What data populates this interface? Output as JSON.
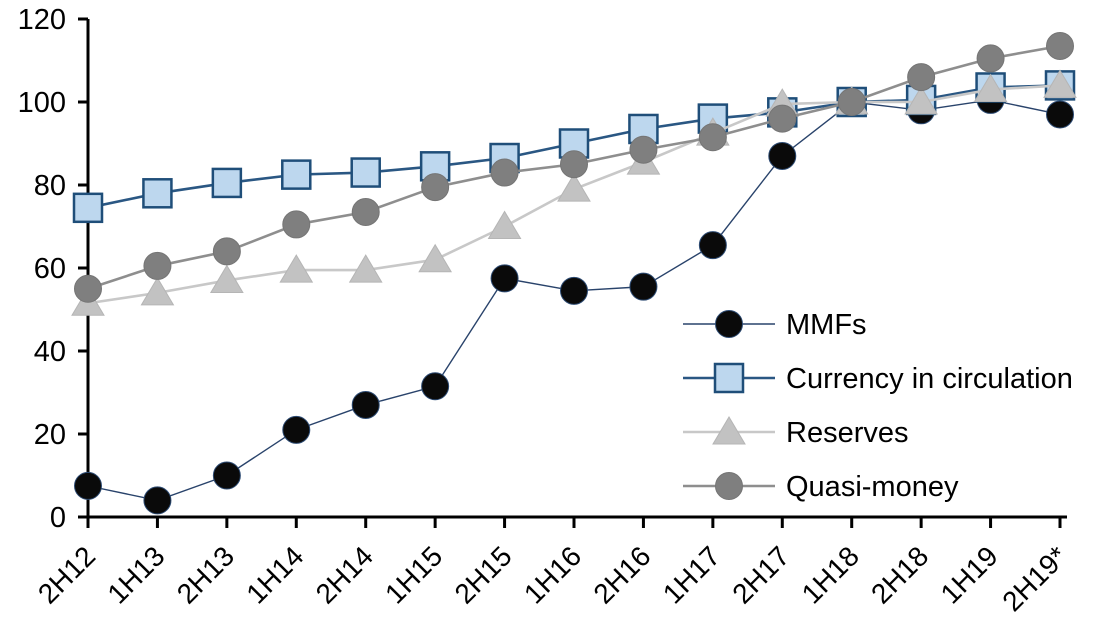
{
  "chart_data": {
    "type": "line",
    "title": "",
    "xlabel": "",
    "ylabel": "",
    "ylim": [
      0,
      120
    ],
    "yticks": [
      0,
      20,
      40,
      60,
      80,
      100,
      120
    ],
    "grid": false,
    "legend_position": "inside-right",
    "axis_color": "#000000",
    "categories": [
      "2H12",
      "1H13",
      "2H13",
      "1H14",
      "2H14",
      "1H15",
      "2H15",
      "1H16",
      "2H16",
      "1H17",
      "2H17",
      "1H18",
      "2H18",
      "1H19",
      "2H19*"
    ],
    "series": [
      {
        "name": "MMFs",
        "marker": "circle",
        "marker_fill": "#0a0a0a",
        "marker_stroke": "#2d4b73",
        "marker_stroke_width": 1,
        "line_color": "#29436b",
        "line_width": 1.4,
        "values": [
          7.5,
          4,
          10,
          21,
          27,
          31.5,
          57.5,
          54.5,
          55.5,
          65.5,
          87,
          100,
          98,
          100.5,
          97
        ]
      },
      {
        "name": "Currency in circulation",
        "marker": "square",
        "marker_fill": "#bdd7ee",
        "marker_stroke": "#1f4e79",
        "marker_stroke_width": 2.5,
        "line_color": "#2a5783",
        "line_width": 2.6,
        "values": [
          74.5,
          78,
          80.5,
          82.5,
          83,
          84.5,
          86.5,
          90,
          93.5,
          96,
          97.5,
          100,
          100.5,
          103.5,
          104
        ]
      },
      {
        "name": "Reserves",
        "marker": "triangle",
        "marker_fill": "#c2c2c2",
        "marker_stroke": "#b5b5b5",
        "marker_stroke_width": 1,
        "line_color": "#c8c8c8",
        "line_width": 2.6,
        "values": [
          51.5,
          54,
          57,
          59.5,
          59.5,
          62,
          70,
          79,
          85.5,
          92.5,
          99.5,
          100,
          100,
          103,
          104
        ]
      },
      {
        "name": "Quasi-money",
        "marker": "circle",
        "marker_fill": "#7f7f7f",
        "marker_stroke": "#757575",
        "marker_stroke_width": 1,
        "line_color": "#8e8e8e",
        "line_width": 2.6,
        "values": [
          55,
          60.5,
          64,
          70.5,
          73.5,
          79.5,
          83,
          85,
          88.5,
          91.5,
          96,
          100,
          106,
          110.5,
          113.5
        ]
      }
    ]
  }
}
